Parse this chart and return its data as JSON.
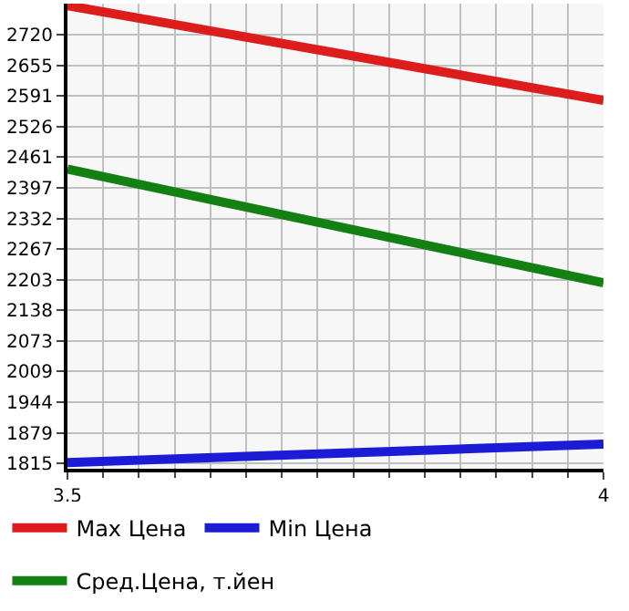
{
  "chart_data": {
    "type": "line",
    "x": [
      3.5,
      4
    ],
    "series": [
      {
        "name": "Max Цена",
        "color": "#dd1c1c",
        "values": [
          2781,
          2581
        ]
      },
      {
        "name": "Min Цена",
        "color": "#1c1cd6",
        "values": [
          1817,
          1856
        ]
      },
      {
        "name": "Сред.Цена, т.йен",
        "color": "#138013",
        "values": [
          2436,
          2196
        ]
      }
    ],
    "xlim": [
      3.5,
      4
    ],
    "xticks": [
      {
        "value": 3.5,
        "label": "3,5"
      },
      4
    ],
    "ylim": [
      1804,
      2785
    ],
    "yticks": [
      1815,
      1879,
      1944,
      2009,
      2073,
      2138,
      2203,
      2267,
      2332,
      2397,
      2461,
      2526,
      2591,
      2655,
      2720
    ],
    "grid": true,
    "legend": "bottom",
    "marker": "none",
    "line_style": "solid"
  }
}
